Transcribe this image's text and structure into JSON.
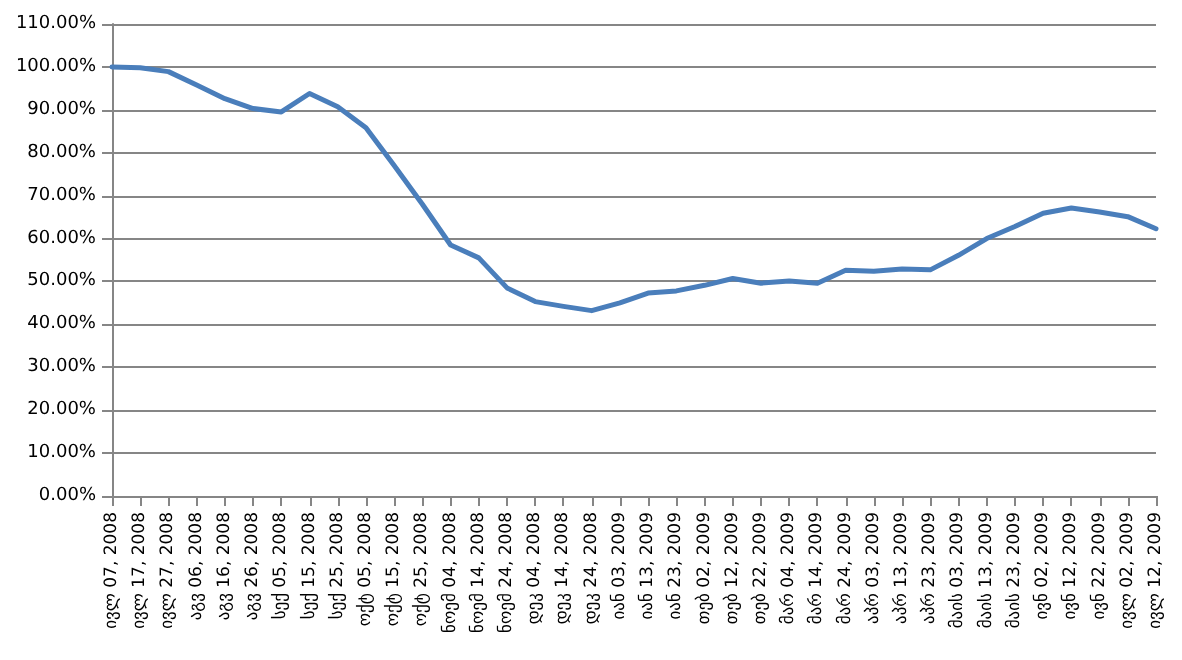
{
  "chart_data": {
    "type": "line",
    "categories": [
      "ივლ 07, 2008",
      "ივლ 17, 2008",
      "ივლ 27, 2008",
      "აგვ 06, 2008",
      "აგვ 16, 2008",
      "აგვ 26, 2008",
      "სექ 05, 2008",
      "სექ 15, 2008",
      "სექ 25, 2008",
      "ოქტ 05, 2008",
      "ოქტ 15, 2008",
      "ოქტ 25, 2008",
      "ნოემ 04, 2008",
      "ნოემ 14, 2008",
      "ნოემ 24, 2008",
      "დეკ 04, 2008",
      "დეკ 14, 2008",
      "დეკ 24, 2008",
      "იან 03, 2009",
      "იან 13, 2009",
      "იან 23, 2009",
      "თებ 02, 2009",
      "თებ 12, 2009",
      "თებ 22, 2009",
      "მარ 04, 2009",
      "მარ 14, 2009",
      "მარ 24, 2009",
      "აპრ 03, 2009",
      "აპრ 13, 2009",
      "აპრ 23, 2009",
      "მაის 03, 2009",
      "მაის 13, 2009",
      "მაის 23, 2009",
      "ივნ 02, 2009",
      "ივნ 12, 2009",
      "ივნ 22, 2009",
      "ივლ 02, 2009",
      "ივლ 12, 2009"
    ],
    "series": [
      {
        "color": "#4a7ebb",
        "values": [
          100,
          99.8,
          98.9,
          95.8,
          92.6,
          90.3,
          89.5,
          93.8,
          90.7,
          85.8,
          77,
          68,
          58.5,
          55.5,
          48.5,
          45.3,
          44.2,
          43.2,
          45,
          47.3,
          47.8,
          49.1,
          50.7,
          49.6,
          50.1,
          49.6,
          52.6,
          52.4,
          52.9,
          52.7,
          56.1,
          60,
          62.8,
          65.9,
          67.1,
          66.2,
          65.1,
          62.3
        ]
      }
    ],
    "ylim": [
      0,
      110
    ],
    "yticks": [
      {
        "value": 0,
        "label": "0.00%"
      },
      {
        "value": 10,
        "label": "10.00%"
      },
      {
        "value": 20,
        "label": "20.00%"
      },
      {
        "value": 30,
        "label": "30.00%"
      },
      {
        "value": 40,
        "label": "40.00%"
      },
      {
        "value": 50,
        "label": "50.00%"
      },
      {
        "value": 60,
        "label": "60.00%"
      },
      {
        "value": 70,
        "label": "70.00%"
      },
      {
        "value": 80,
        "label": "80.00%"
      },
      {
        "value": 90,
        "label": "90.00%"
      },
      {
        "value": 100,
        "label": "100.00%"
      },
      {
        "value": 110,
        "label": "110.00%"
      }
    ],
    "grid": "y",
    "marker": "none",
    "line_style": "solid"
  }
}
